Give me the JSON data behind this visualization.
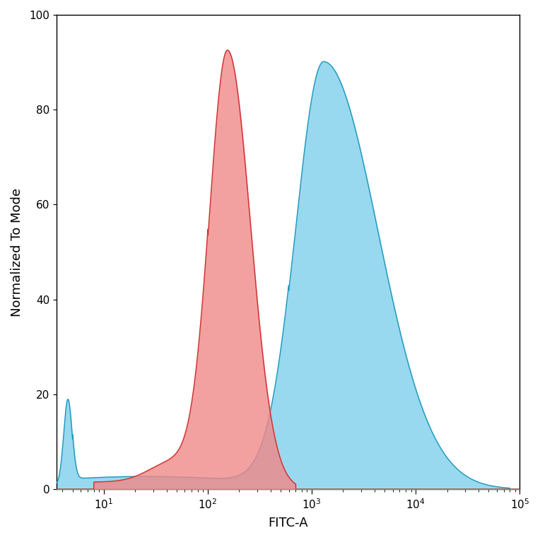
{
  "title": "",
  "xlabel": "FITC-A",
  "ylabel": "Normalized To Mode",
  "xlim": [
    3.5,
    100000
  ],
  "ylim": [
    0,
    100
  ],
  "yticks": [
    0,
    20,
    40,
    60,
    80,
    100
  ],
  "background_color": "#ffffff",
  "red_fill_color": "#f08888",
  "red_line_color": "#cc3333",
  "blue_fill_color": "#76cdea",
  "blue_line_color": "#2299bb"
}
